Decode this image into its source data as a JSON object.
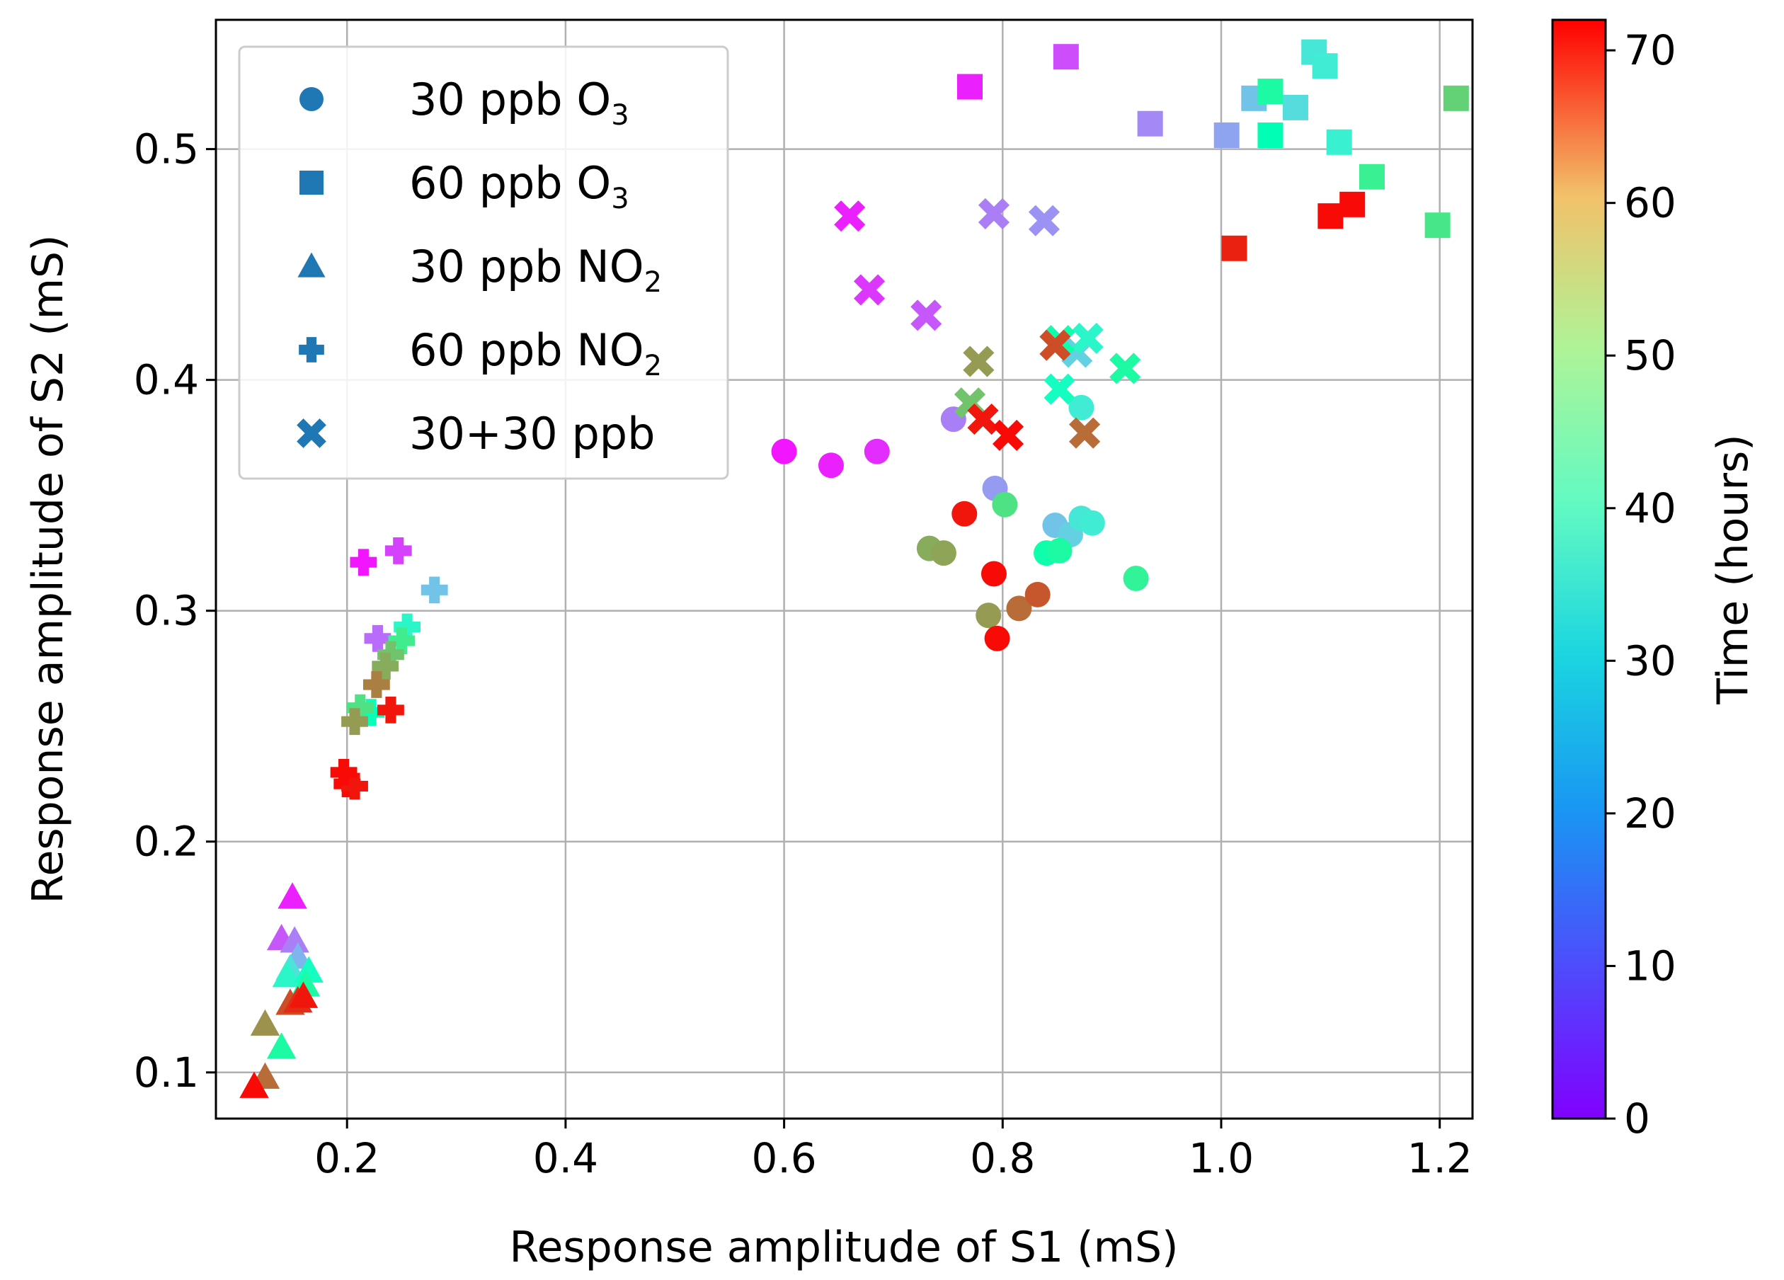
{
  "chart_data": {
    "type": "scatter",
    "xlabel": "Response amplitude of S1 (mS)",
    "ylabel": "Response amplitude of S2 (mS)",
    "xlim": [
      0.08,
      1.23
    ],
    "ylim": [
      0.08,
      0.556
    ],
    "x_ticks": [
      0.2,
      0.4,
      0.6,
      0.8,
      1.0,
      1.2
    ],
    "x_tick_labels": [
      "0.2",
      "0.4",
      "0.6",
      "0.8",
      "1.0",
      "1.2"
    ],
    "y_ticks": [
      0.1,
      0.2,
      0.3,
      0.4,
      0.5
    ],
    "y_tick_labels": [
      "0.1",
      "0.2",
      "0.3",
      "0.4",
      "0.5"
    ],
    "grid": true,
    "legend_position": "top-left",
    "colorbar": {
      "label": "Time (hours)",
      "colormap": "rainbow",
      "range": [
        0,
        72
      ],
      "ticks": [
        0,
        10,
        20,
        30,
        40,
        50,
        60,
        70
      ],
      "tick_labels": [
        "0",
        "10",
        "20",
        "30",
        "40",
        "50",
        "60",
        "70"
      ]
    },
    "legend_color": "#1f77b4",
    "series": [
      {
        "name": "30 ppb O3",
        "legend_main": "30 ppb O",
        "legend_sub": "3",
        "marker": "circle",
        "points": [
          [
            0.6,
            0.369,
            2
          ],
          [
            0.643,
            0.363,
            3
          ],
          [
            0.685,
            0.369,
            4
          ],
          [
            0.755,
            0.383,
            12
          ],
          [
            0.793,
            0.353,
            15
          ],
          [
            0.848,
            0.337,
            20
          ],
          [
            0.862,
            0.333,
            22
          ],
          [
            0.872,
            0.34,
            26
          ],
          [
            0.882,
            0.338,
            27
          ],
          [
            0.872,
            0.388,
            27
          ],
          [
            0.84,
            0.325,
            38
          ],
          [
            0.852,
            0.326,
            40
          ],
          [
            0.922,
            0.314,
            43
          ],
          [
            0.802,
            0.346,
            47
          ],
          [
            0.733,
            0.327,
            55
          ],
          [
            0.746,
            0.325,
            56
          ],
          [
            0.787,
            0.298,
            57
          ],
          [
            0.815,
            0.301,
            62
          ],
          [
            0.832,
            0.307,
            64
          ],
          [
            0.765,
            0.342,
            70
          ],
          [
            0.792,
            0.316,
            71
          ],
          [
            0.795,
            0.288,
            71
          ]
        ]
      },
      {
        "name": "60 ppb O3",
        "legend_main": "60 ppb O",
        "legend_sub": "3",
        "marker": "square",
        "points": [
          [
            0.77,
            0.527,
            3
          ],
          [
            0.858,
            0.54,
            7
          ],
          [
            0.935,
            0.511,
            13
          ],
          [
            1.005,
            0.506,
            16
          ],
          [
            1.03,
            0.522,
            20
          ],
          [
            1.068,
            0.518,
            24
          ],
          [
            1.085,
            0.542,
            26
          ],
          [
            1.095,
            0.536,
            27
          ],
          [
            1.108,
            0.503,
            28
          ],
          [
            1.045,
            0.506,
            36
          ],
          [
            1.045,
            0.525,
            40
          ],
          [
            1.138,
            0.488,
            44
          ],
          [
            1.198,
            0.467,
            46
          ],
          [
            1.215,
            0.522,
            50
          ],
          [
            1.012,
            0.457,
            69
          ],
          [
            1.1,
            0.471,
            71
          ],
          [
            1.12,
            0.476,
            71
          ]
        ]
      },
      {
        "name": "30 ppb NO2",
        "legend_main": "30 ppb NO",
        "legend_sub": "2",
        "marker": "triangle",
        "points": [
          [
            0.15,
            0.176,
            3
          ],
          [
            0.14,
            0.158,
            8
          ],
          [
            0.152,
            0.157,
            12
          ],
          [
            0.155,
            0.15,
            18
          ],
          [
            0.148,
            0.145,
            25
          ],
          [
            0.145,
            0.142,
            30
          ],
          [
            0.165,
            0.144,
            33
          ],
          [
            0.162,
            0.138,
            40
          ],
          [
            0.14,
            0.111,
            40
          ],
          [
            0.16,
            0.133,
            50
          ],
          [
            0.125,
            0.121,
            58
          ],
          [
            0.125,
            0.098,
            62
          ],
          [
            0.148,
            0.13,
            65
          ],
          [
            0.155,
            0.131,
            68
          ],
          [
            0.16,
            0.133,
            70
          ],
          [
            0.115,
            0.094,
            71
          ]
        ]
      },
      {
        "name": "60 ppb NO2",
        "legend_main": "60 ppb NO",
        "legend_sub": "2",
        "marker": "plus",
        "points": [
          [
            0.215,
            0.321,
            2
          ],
          [
            0.247,
            0.326,
            6
          ],
          [
            0.228,
            0.288,
            10
          ],
          [
            0.28,
            0.309,
            20
          ],
          [
            0.255,
            0.293,
            30
          ],
          [
            0.222,
            0.256,
            35
          ],
          [
            0.25,
            0.287,
            45
          ],
          [
            0.212,
            0.258,
            47
          ],
          [
            0.24,
            0.281,
            52
          ],
          [
            0.235,
            0.276,
            55
          ],
          [
            0.207,
            0.252,
            57
          ],
          [
            0.227,
            0.268,
            60
          ],
          [
            0.24,
            0.257,
            70
          ],
          [
            0.2,
            0.225,
            71
          ],
          [
            0.207,
            0.224,
            70
          ],
          [
            0.197,
            0.23,
            71
          ]
        ]
      },
      {
        "name": "30+30 ppb",
        "legend_main": "30+30 ppb",
        "legend_sub": "",
        "marker": "x",
        "points": [
          [
            0.66,
            0.471,
            3
          ],
          [
            0.678,
            0.439,
            5
          ],
          [
            0.73,
            0.428,
            8
          ],
          [
            0.792,
            0.472,
            12
          ],
          [
            0.838,
            0.469,
            14
          ],
          [
            0.868,
            0.412,
            22
          ],
          [
            0.878,
            0.418,
            30
          ],
          [
            0.852,
            0.396,
            33
          ],
          [
            0.852,
            0.417,
            38
          ],
          [
            0.912,
            0.405,
            40
          ],
          [
            0.77,
            0.39,
            52
          ],
          [
            0.778,
            0.408,
            57
          ],
          [
            0.875,
            0.377,
            62
          ],
          [
            0.848,
            0.415,
            65
          ],
          [
            0.782,
            0.383,
            70
          ],
          [
            0.805,
            0.376,
            71
          ]
        ]
      }
    ]
  }
}
